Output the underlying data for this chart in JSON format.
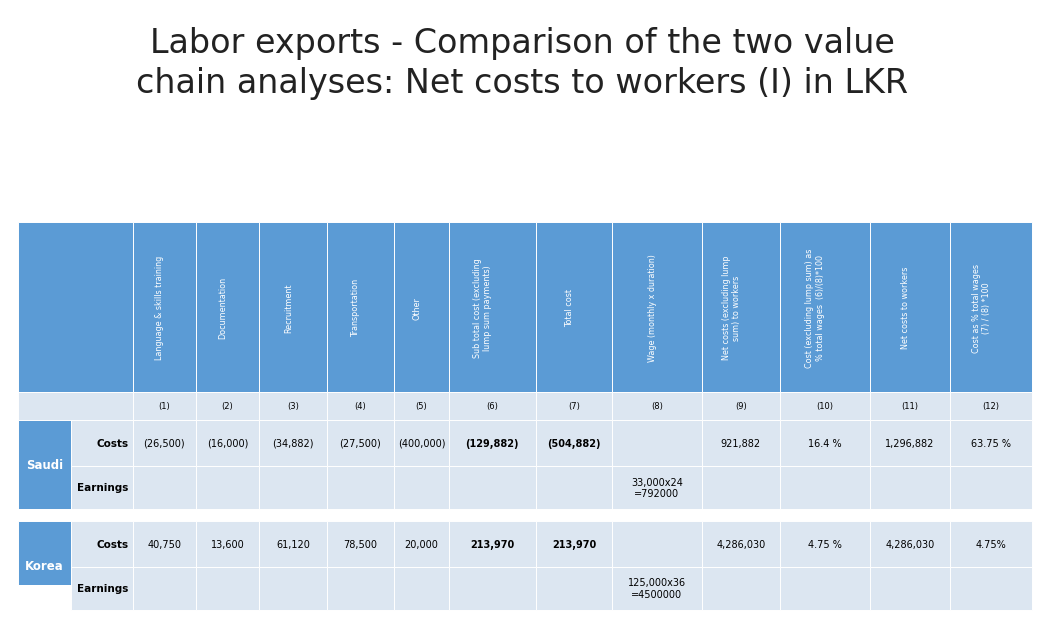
{
  "title": "Labor exports - Comparison of the two value\nchain analyses: Net costs to workers (I) in LKR",
  "title_fontsize": 24,
  "background_color": "#ffffff",
  "header_bg_color": "#5b9bd5",
  "light_bg_color": "#dce6f1",
  "white_bg_color": "#ffffff",
  "columns_header": [
    "Language & skills training",
    "Documentation",
    "Recruitment",
    "Transportation",
    "Other",
    "Sub total cost (excluding\nlump sum payments)",
    "Total cost",
    "Wage (monthly x duration)",
    "Net costs (excluding lump\nsum) to workers",
    "Cost (excluding lump sum) as\n% total wages  (6)/(8)*100",
    "Net costs to workers",
    "Cost as % total wages\n(7) / (8) *100"
  ],
  "col_numbers": [
    "(1)",
    "(2)",
    "(3)",
    "(4)",
    "(5)",
    "(6)",
    "(7)",
    "(8)",
    "(9)",
    "(10)",
    "(11)",
    "(12)"
  ],
  "saudi_costs": [
    "(26,500)",
    "(16,000)",
    "(34,882)",
    "(27,500)",
    "(400,000)",
    "(129,882)",
    "(504,882)",
    "",
    "921,882",
    "16.4 %",
    "1,296,882",
    "63.75 %"
  ],
  "saudi_earnings": [
    "",
    "",
    "",
    "",
    "",
    "",
    "",
    "33,000x24\n=792000",
    "",
    "",
    "",
    ""
  ],
  "korea_costs": [
    "40,750",
    "13,600",
    "61,120",
    "78,500",
    "20,000",
    "213,970",
    "213,970",
    "",
    "4,286,030",
    "4.75 %",
    "4,286,030",
    "4.75%"
  ],
  "korea_earnings": [
    "",
    "",
    "",
    "",
    "",
    "",
    "",
    "125,000x36\n=4500000",
    "",
    "",
    "",
    ""
  ]
}
